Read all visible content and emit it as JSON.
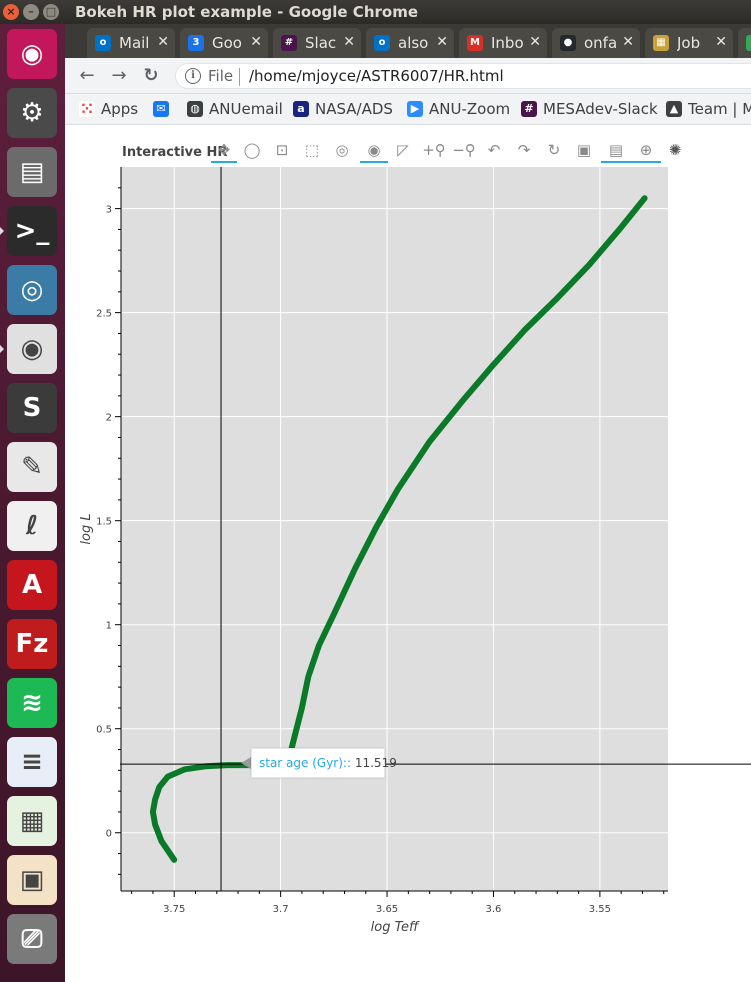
{
  "window": {
    "title": "Bokeh HR plot example - Google Chrome"
  },
  "launcher": [
    {
      "name": "ubuntu-dash-icon",
      "color": "#c2185b",
      "glyph": "◉"
    },
    {
      "name": "system-settings-icon",
      "color": "#4a4a4a",
      "glyph": "⚙"
    },
    {
      "name": "files-icon",
      "color": "#6b6b6b",
      "glyph": "▤"
    },
    {
      "name": "terminal-icon",
      "color": "#2b2b2b",
      "glyph": ">_"
    },
    {
      "name": "network-icon",
      "color": "#3a7ca5",
      "glyph": "◎"
    },
    {
      "name": "chrome-icon",
      "color": "#e0e0e0",
      "glyph": "◉"
    },
    {
      "name": "sublime-text-icon",
      "color": "#3b3b3b",
      "glyph": "S"
    },
    {
      "name": "latex-editor-icon",
      "color": "#e8e8e8",
      "glyph": "✎"
    },
    {
      "name": "reader-icon",
      "color": "#f0f0f0",
      "glyph": "ℓ"
    },
    {
      "name": "acrobat-icon",
      "color": "#c4161c",
      "glyph": "A"
    },
    {
      "name": "filezilla-icon",
      "color": "#bf1d1d",
      "glyph": "Fz"
    },
    {
      "name": "spotify-icon",
      "color": "#1db954",
      "glyph": "≋"
    },
    {
      "name": "writer-icon",
      "color": "#e8eef7",
      "glyph": "≡"
    },
    {
      "name": "calc-icon",
      "color": "#e6f2e0",
      "glyph": "▦"
    },
    {
      "name": "impress-icon",
      "color": "#f3e2c5",
      "glyph": "▣"
    },
    {
      "name": "usb-creator-icon",
      "color": "#7a7a7a",
      "glyph": "⎚"
    }
  ],
  "tabs": [
    {
      "label": "Mail",
      "fav_color": "#0072c6",
      "fav_glyph": "o"
    },
    {
      "label": "Goo",
      "fav_color": "#1a73e8",
      "fav_glyph": "3"
    },
    {
      "label": "Slac",
      "fav_color": "#4a154b",
      "fav_glyph": "#"
    },
    {
      "label": "also",
      "fav_color": "#0072c6",
      "fav_glyph": "o"
    },
    {
      "label": "Inbo",
      "fav_color": "#d93025",
      "fav_glyph": "M"
    },
    {
      "label": "onfa",
      "fav_color": "#24292e",
      "fav_glyph": "●"
    },
    {
      "label": "Job",
      "fav_color": "#c8a13a",
      "fav_glyph": "▦"
    },
    {
      "label": "",
      "fav_color": "#34a853",
      "fav_glyph": "✓"
    }
  ],
  "tab_close_glyph": "✕",
  "nav": {
    "back_glyph": "←",
    "forward_glyph": "→",
    "reload_glyph": "↻",
    "info_glyph": "i",
    "scheme_label": "File",
    "url": "/home/mjoyce/ASTR6007/HR.html"
  },
  "bookmarks": [
    {
      "label": "Apps",
      "fav_color": "#ffffff",
      "fav_glyph": "⁙",
      "name": "apps-bookmark"
    },
    {
      "label": "",
      "fav_color": "#1877f2",
      "fav_glyph": "✉",
      "name": "messenger-bookmark"
    },
    {
      "label": "ANUemail",
      "fav_color": "#3c4043",
      "fav_glyph": "◍",
      "name": "anuemail-bookmark"
    },
    {
      "label": "NASA/ADS",
      "fav_color": "#1a237e",
      "fav_glyph": "a",
      "name": "nasa-ads-bookmark"
    },
    {
      "label": "ANU-Zoom",
      "fav_color": "#2d8cff",
      "fav_glyph": "▶",
      "name": "anu-zoom-bookmark"
    },
    {
      "label": "MESAdev-Slack",
      "fav_color": "#4a154b",
      "fav_glyph": "#",
      "name": "mesadev-slack-bookmark"
    },
    {
      "label": "Team | M",
      "fav_color": "#3c4043",
      "fav_glyph": "▲",
      "name": "team-bookmark"
    }
  ],
  "chart_data": {
    "type": "line",
    "title": "Interactive HR",
    "xlabel": "log Teff",
    "ylabel": "log L",
    "xlim": [
      3.775,
      3.518
    ],
    "ylim": [
      -0.28,
      3.2
    ],
    "x_reversed": true,
    "grid": true,
    "line_color": "#0b7a28",
    "xticks": [
      3.75,
      3.7,
      3.65,
      3.6,
      3.55
    ],
    "xtick_labels": [
      "3.75",
      "3.7",
      "3.65",
      "3.6",
      "3.55"
    ],
    "yticks": [
      0,
      0.5,
      1,
      1.5,
      2,
      2.5,
      3
    ],
    "ytick_labels": [
      "0",
      "0.5",
      "1",
      "1.5",
      "2",
      "2.5",
      "3"
    ],
    "series": [
      {
        "x": [
          3.75,
          3.756,
          3.759,
          3.76,
          3.759,
          3.757,
          3.753,
          3.745,
          3.735,
          3.725,
          3.715,
          3.705,
          3.7,
          3.697,
          3.695,
          3.693,
          3.69,
          3.687,
          3.682,
          3.675,
          3.665,
          3.655,
          3.645,
          3.63,
          3.615,
          3.6,
          3.585,
          3.57,
          3.555,
          3.54,
          3.529
        ],
        "y": [
          -0.13,
          -0.04,
          0.04,
          0.1,
          0.16,
          0.22,
          0.27,
          0.305,
          0.32,
          0.325,
          0.325,
          0.33,
          0.34,
          0.36,
          0.4,
          0.48,
          0.6,
          0.75,
          0.9,
          1.05,
          1.27,
          1.47,
          1.65,
          1.88,
          2.07,
          2.25,
          2.42,
          2.57,
          2.73,
          2.91,
          3.05
        ]
      }
    ],
    "crosshair": {
      "x": 3.728,
      "y": 0.33
    },
    "tooltip": {
      "label": "star age (Gyr):",
      "sep": ":",
      "value": "11.519"
    }
  }
}
